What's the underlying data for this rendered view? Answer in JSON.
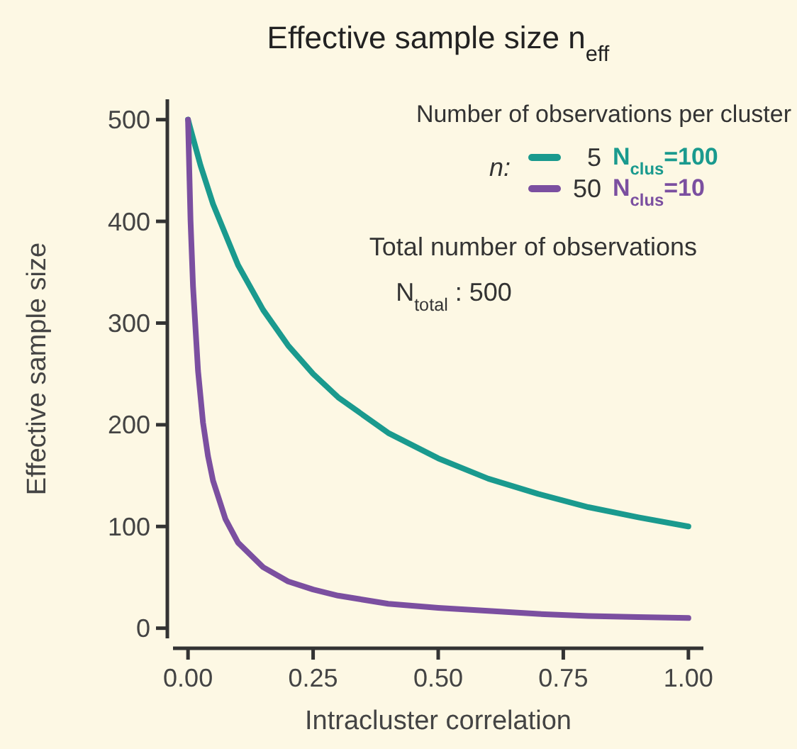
{
  "chart_data": {
    "type": "line",
    "title": "Effective sample size n$_{eff}$",
    "xlabel": "Intracluster correlation",
    "ylabel": "Effective sample size",
    "xlim": [
      -0.03,
      1.03
    ],
    "ylim": [
      -10,
      520
    ],
    "xticks": [
      {
        "value": 0,
        "label": "0.00"
      },
      {
        "value": 0.25,
        "label": "0.25"
      },
      {
        "value": 0.5,
        "label": "0.50"
      },
      {
        "value": 0.75,
        "label": "0.75"
      },
      {
        "value": 1,
        "label": "1.00"
      }
    ],
    "yticks": [
      0,
      100,
      200,
      300,
      400,
      500
    ],
    "grid": false,
    "legend": "top right",
    "legend_title": "Number of observations per cluster",
    "line_style": "solid",
    "marker": "none",
    "annotations": [
      "n:",
      "N$_{clus}$=100",
      "N$_{clus}$=10",
      "Total number of observations",
      "N$_{total}$ : 500"
    ],
    "series": [
      {
        "name": "5",
        "color": "#1a9a8e",
        "x": [
          0,
          0.025,
          0.05,
          0.1,
          0.15,
          0.2,
          0.25,
          0.3,
          0.4,
          0.5,
          0.6,
          0.7,
          0.8,
          0.9,
          1
        ],
        "values": [
          500,
          455,
          417,
          357,
          313,
          278,
          250,
          227,
          192,
          167,
          147,
          132,
          119,
          109,
          100
        ]
      },
      {
        "name": "50",
        "color": "#7b4fa0",
        "x": [
          0,
          0.005,
          0.01,
          0.02,
          0.03,
          0.04,
          0.05,
          0.075,
          0.1,
          0.15,
          0.2,
          0.25,
          0.3,
          0.4,
          0.5,
          0.6,
          0.7,
          0.8,
          0.9,
          1
        ],
        "values": [
          500,
          401,
          336,
          253,
          202,
          169,
          145,
          107,
          84,
          60,
          46,
          38,
          32,
          24,
          20,
          17,
          14,
          12,
          11,
          10
        ]
      }
    ]
  }
}
